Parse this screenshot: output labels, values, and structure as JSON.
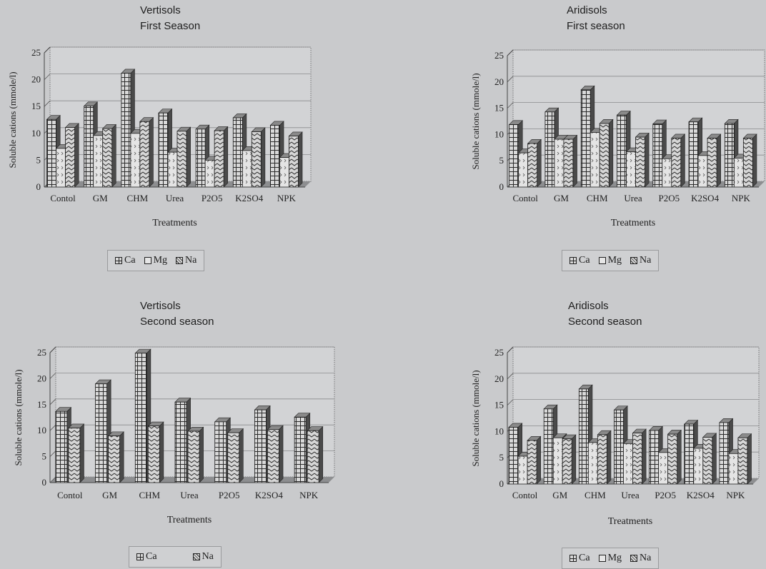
{
  "chart_data": [
    {
      "type": "bar",
      "title": "Vertisols",
      "subtitle": "First Season",
      "xlabel": "Treatments",
      "ylabel": "Soluble cations (mmole/l)",
      "ylim": [
        0,
        25
      ],
      "yticks": [
        0,
        5,
        10,
        15,
        20,
        25
      ],
      "categories": [
        "Contol",
        "GM",
        "CHM",
        "Urea",
        "P2O5",
        "K2SO4",
        "NPK"
      ],
      "series": [
        {
          "name": "Ca",
          "values": [
            12.6,
            15.1,
            21.2,
            13.8,
            10.8,
            12.9,
            11.5
          ]
        },
        {
          "name": "Mg",
          "values": [
            7.2,
            9.6,
            10.0,
            6.5,
            5.0,
            6.8,
            5.5
          ]
        },
        {
          "name": "Na",
          "values": [
            11.1,
            10.9,
            12.2,
            10.4,
            10.5,
            10.3,
            9.5
          ]
        }
      ],
      "legend": "bottom"
    },
    {
      "type": "bar",
      "title": "Aridisols",
      "subtitle": "First season",
      "xlabel": "Treatments",
      "ylabel": "Soluble cations (mmole/l)",
      "ylim": [
        0,
        25
      ],
      "yticks": [
        0,
        5,
        10,
        15,
        20,
        25
      ],
      "categories": [
        "Contol",
        "GM",
        "CHM",
        "Urea",
        "P2O5",
        "K2SO4",
        "NPK"
      ],
      "series": [
        {
          "name": "Ca",
          "values": [
            11.9,
            14.3,
            18.5,
            13.7,
            12.0,
            12.4,
            12.1
          ]
        },
        {
          "name": "Mg",
          "values": [
            6.5,
            9.1,
            10.4,
            6.7,
            5.4,
            6.0,
            5.5
          ]
        },
        {
          "name": "Na",
          "values": [
            8.3,
            9.1,
            12.1,
            9.5,
            9.3,
            9.3,
            9.3
          ]
        }
      ],
      "legend": "bottom"
    },
    {
      "type": "bar",
      "title": "Vertisols",
      "subtitle": "Second season",
      "xlabel": "Treatments",
      "ylabel": "Soluble cations (mmole/l)",
      "ylim": [
        0,
        25
      ],
      "yticks": [
        0,
        5,
        10,
        15,
        20,
        25
      ],
      "categories": [
        "Contol",
        "GM",
        "CHM",
        "Urea",
        "P2O5",
        "K2SO4",
        "NPK"
      ],
      "series": [
        {
          "name": "Ca",
          "values": [
            13.7,
            19.0,
            24.9,
            15.5,
            11.7,
            14.0,
            12.6
          ]
        },
        {
          "name": "Na",
          "values": [
            10.5,
            9.0,
            10.9,
            9.9,
            9.6,
            10.2,
            10.0
          ]
        }
      ],
      "legend": "bottom"
    },
    {
      "type": "bar",
      "title": "Aridisols",
      "subtitle": "Second season",
      "xlabel": "Treatments",
      "ylabel": "Soluble cations (mmole/l)",
      "ylim": [
        0,
        25
      ],
      "yticks": [
        0,
        5,
        10,
        15,
        20,
        25
      ],
      "categories": [
        "Contol",
        "GM",
        "CHM",
        "Urea",
        "P2O5",
        "K2SO4",
        "NPK"
      ],
      "series": [
        {
          "name": "Ca",
          "values": [
            10.8,
            14.3,
            18.1,
            14.1,
            10.2,
            11.4,
            11.7
          ]
        },
        {
          "name": "Mg",
          "values": [
            5.3,
            8.8,
            7.9,
            7.7,
            6.0,
            6.8,
            5.8
          ]
        },
        {
          "name": "Na",
          "values": [
            8.3,
            8.6,
            9.4,
            9.7,
            9.5,
            8.9,
            8.8
          ]
        }
      ],
      "legend": "bottom"
    }
  ]
}
